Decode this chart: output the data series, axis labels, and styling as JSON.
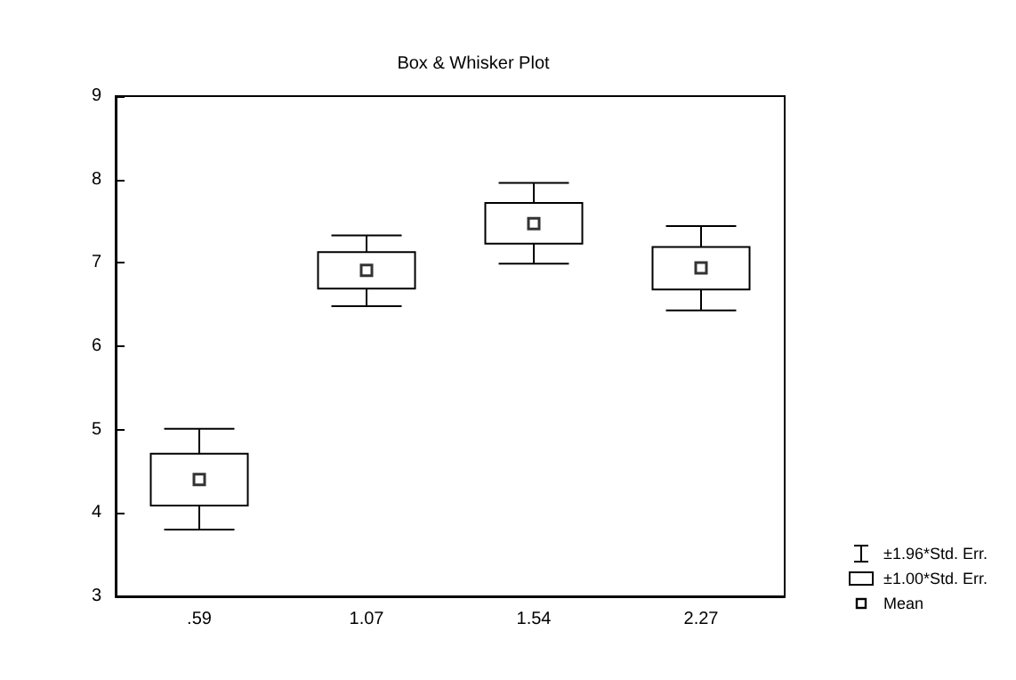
{
  "chart_data": {
    "type": "box",
    "title": "Box & Whisker Plot",
    "categories": [
      ".59",
      "1.07",
      "1.54",
      "2.27"
    ],
    "series": [
      {
        "name": "±1.96*Std. Err.",
        "color": "#000000",
        "boxes": [
          {
            "low": 3.8,
            "q1": 4.09,
            "median": 4.4,
            "q3": 4.71,
            "high": 5.01
          },
          {
            "low": 6.48,
            "q1": 6.69,
            "median": 6.91,
            "q3": 7.13,
            "high": 7.33
          },
          {
            "low": 6.99,
            "q1": 7.23,
            "median": 7.47,
            "q3": 7.72,
            "high": 7.96
          },
          {
            "low": 6.43,
            "q1": 6.68,
            "median": 6.94,
            "q3": 7.19,
            "high": 7.44
          }
        ]
      }
    ],
    "annotations": [
      "±1.00*Std. Err.",
      "Mean"
    ],
    "marker": "square",
    "ylim": [
      3,
      9
    ],
    "yticks": [
      3,
      4,
      5,
      6,
      7,
      8,
      9
    ],
    "grid": false,
    "legend": "bottom right"
  }
}
